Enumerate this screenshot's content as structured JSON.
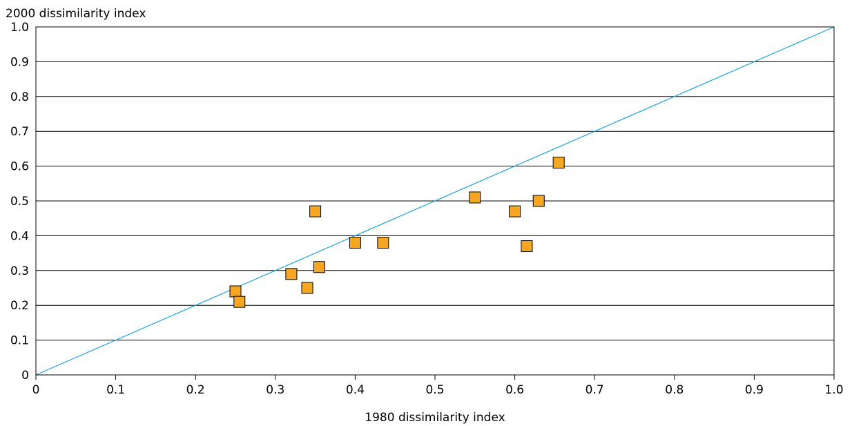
{
  "chart_data": {
    "type": "scatter",
    "xlabel": "1980 dissimilarity index",
    "ylabel": "2000 dissimilarity index",
    "xlim": [
      0,
      1.0
    ],
    "ylim": [
      0,
      1.0
    ],
    "x_ticks": [
      "0",
      "0.1",
      "0.2",
      "0.3",
      "0.4",
      "0.5",
      "0.6",
      "0.7",
      "0.8",
      "0.9",
      "1.0"
    ],
    "y_ticks": [
      "0",
      "0.1",
      "0.2",
      "0.3",
      "0.4",
      "0.5",
      "0.6",
      "0.7",
      "0.8",
      "0.9",
      "1.0"
    ],
    "grid": "horizontal",
    "reference_line": {
      "from": [
        0,
        0
      ],
      "to": [
        1.0,
        1.0
      ],
      "color": "#1aa3d6"
    },
    "marker": {
      "shape": "square",
      "fill": "#f5a623",
      "stroke": "#000000"
    },
    "points": [
      {
        "x": 0.25,
        "y": 0.24
      },
      {
        "x": 0.255,
        "y": 0.21
      },
      {
        "x": 0.32,
        "y": 0.29
      },
      {
        "x": 0.34,
        "y": 0.25
      },
      {
        "x": 0.35,
        "y": 0.47
      },
      {
        "x": 0.355,
        "y": 0.31
      },
      {
        "x": 0.4,
        "y": 0.38
      },
      {
        "x": 0.435,
        "y": 0.38
      },
      {
        "x": 0.55,
        "y": 0.51
      },
      {
        "x": 0.6,
        "y": 0.47
      },
      {
        "x": 0.615,
        "y": 0.37
      },
      {
        "x": 0.63,
        "y": 0.5
      },
      {
        "x": 0.655,
        "y": 0.61
      }
    ]
  }
}
